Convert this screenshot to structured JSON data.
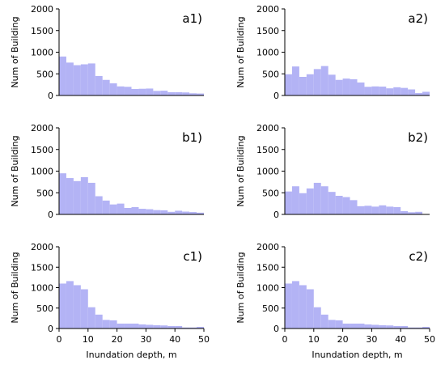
{
  "chart_data": [
    {
      "type": "bar",
      "label": "a1)",
      "ylabel": "Num of Building",
      "xlabel": "",
      "xlim": [
        0,
        50
      ],
      "ylim": [
        0,
        2000
      ],
      "bin_width": 2.5,
      "bin_edges_start": 0,
      "xticks": [],
      "yticks": [
        0,
        500,
        1000,
        1500,
        2000
      ],
      "values": [
        900,
        760,
        700,
        720,
        740,
        450,
        360,
        280,
        210,
        200,
        150,
        155,
        160,
        105,
        110,
        75,
        75,
        70,
        50,
        45
      ]
    },
    {
      "type": "bar",
      "label": "a2)",
      "ylabel": "Num of Building",
      "xlabel": "",
      "xlim": [
        0,
        50
      ],
      "ylim": [
        0,
        2000
      ],
      "bin_width": 2.5,
      "bin_edges_start": 0,
      "xticks": [],
      "yticks": [
        0,
        500,
        1000,
        1500,
        2000
      ],
      "values": [
        490,
        670,
        430,
        490,
        610,
        680,
        480,
        360,
        390,
        375,
        300,
        200,
        210,
        205,
        165,
        190,
        175,
        140,
        55,
        85
      ]
    },
    {
      "type": "bar",
      "label": "b1)",
      "ylabel": "Num of Building",
      "xlabel": "",
      "xlim": [
        0,
        50
      ],
      "ylim": [
        0,
        2000
      ],
      "bin_width": 2.5,
      "bin_edges_start": 0,
      "xticks": [],
      "yticks": [
        0,
        500,
        1000,
        1500,
        2000
      ],
      "values": [
        950,
        840,
        770,
        860,
        730,
        420,
        320,
        230,
        250,
        150,
        170,
        130,
        120,
        100,
        95,
        60,
        85,
        65,
        55,
        40
      ]
    },
    {
      "type": "bar",
      "label": "b2)",
      "ylabel": "Num of Building",
      "xlabel": "",
      "xlim": [
        0,
        50
      ],
      "ylim": [
        0,
        2000
      ],
      "bin_width": 2.5,
      "bin_edges_start": 0,
      "xticks": [],
      "yticks": [
        0,
        500,
        1000,
        1500,
        2000
      ],
      "values": [
        530,
        650,
        490,
        600,
        730,
        650,
        520,
        430,
        400,
        330,
        190,
        200,
        180,
        210,
        180,
        170,
        75,
        50,
        60,
        0
      ]
    },
    {
      "type": "bar",
      "label": "c1)",
      "ylabel": "Num of Building",
      "xlabel": "Inundation depth, m",
      "xlim": [
        0,
        50
      ],
      "ylim": [
        0,
        2000
      ],
      "bin_width": 2.5,
      "bin_edges_start": 0,
      "xticks": [
        0,
        10,
        20,
        30,
        40,
        50
      ],
      "yticks": [
        0,
        500,
        1000,
        1500,
        2000
      ],
      "values": [
        1100,
        1160,
        1060,
        960,
        520,
        340,
        210,
        200,
        120,
        120,
        120,
        100,
        90,
        80,
        75,
        60,
        60,
        25,
        25,
        40
      ]
    },
    {
      "type": "bar",
      "label": "c2)",
      "ylabel": "Num of Building",
      "xlabel": "Inundation depth, m",
      "xlim": [
        0,
        50
      ],
      "ylim": [
        0,
        2000
      ],
      "bin_width": 2.5,
      "bin_edges_start": 0,
      "xticks": [
        0,
        10,
        20,
        30,
        40,
        50
      ],
      "yticks": [
        0,
        500,
        1000,
        1500,
        2000
      ],
      "values": [
        1100,
        1160,
        1060,
        960,
        520,
        340,
        210,
        200,
        120,
        120,
        120,
        100,
        90,
        80,
        75,
        60,
        60,
        25,
        25,
        40
      ]
    }
  ]
}
